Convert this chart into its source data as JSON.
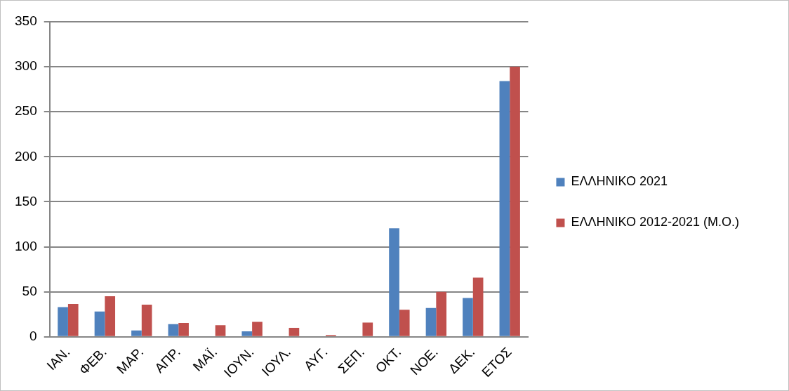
{
  "chart_data": {
    "type": "bar",
    "categories": [
      "ΙΑΝ.",
      "ΦΕΒ.",
      "ΜΑΡ.",
      "ΑΠΡ.",
      "ΜΑΪ.",
      "ΙΟΥΝ.",
      "ΙΟΥΛ.",
      "ΑΥΓ.",
      "ΣΕΠ.",
      "ΟΚΤ.",
      "ΝΟΕ.",
      "ΔΕΚ.",
      "ΕΤΟΣ"
    ],
    "series": [
      {
        "name": "ΕΛΛΗΝΙΚΟ 2021",
        "color": "#4f81bd",
        "values": [
          33,
          28,
          7,
          14,
          0,
          6,
          0,
          0,
          0,
          120.5,
          32,
          43,
          284
        ]
      },
      {
        "name": "ΕΛΛΗΝΙΚΟ 2012-2021 (Μ.Ο.)",
        "color": "#c0504d",
        "values": [
          36.5,
          45,
          35.7,
          15.4,
          12.9,
          16.5,
          9.9,
          1.9,
          15.7,
          30,
          50,
          65.7,
          300
        ]
      }
    ],
    "ylim": [
      0,
      350
    ],
    "yticks": [
      0,
      50,
      100,
      150,
      200,
      250,
      300,
      350
    ],
    "grid": "y",
    "legend": "right"
  }
}
